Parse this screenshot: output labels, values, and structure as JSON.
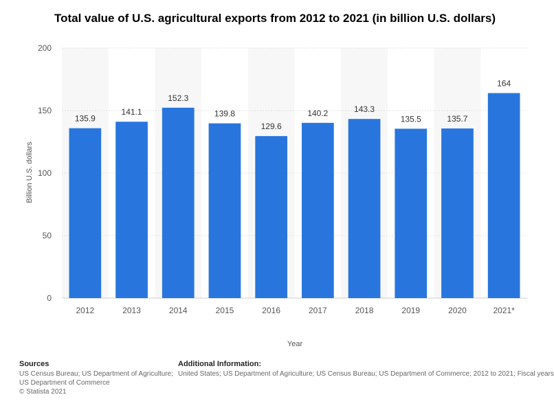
{
  "chart_data": {
    "type": "bar",
    "title": "Total value of U.S. agricultural exports from 2012 to 2021 (in billion U.S. dollars)",
    "xlabel": "Year",
    "ylabel": "Billion U.S. dollars",
    "categories": [
      "2012",
      "2013",
      "2014",
      "2015",
      "2016",
      "2017",
      "2018",
      "2019",
      "2020",
      "2021*"
    ],
    "values": [
      135.9,
      141.1,
      152.3,
      139.8,
      129.6,
      140.2,
      143.3,
      135.5,
      135.7,
      164
    ],
    "data_labels": [
      "135.9",
      "141.1",
      "152.3",
      "139.8",
      "129.6",
      "140.2",
      "143.3",
      "135.5",
      "135.7",
      "164"
    ],
    "ylim": [
      0,
      200
    ],
    "yticks": [
      0,
      50,
      100,
      150,
      200
    ],
    "grid": true,
    "bar_color": "#2876dd",
    "band_color": "#f7f7f7"
  },
  "footer": {
    "sources_title": "Sources",
    "sources_lines": [
      "US Census Bureau; US Department of Agriculture;",
      "US Department of Commerce",
      "© Statista 2021"
    ],
    "info_title": "Additional Information:",
    "info_lines": [
      "United States; US Department of Agriculture; US Census Bureau; US Department of Commerce; 2012 to 2021; Fiscal years"
    ]
  }
}
